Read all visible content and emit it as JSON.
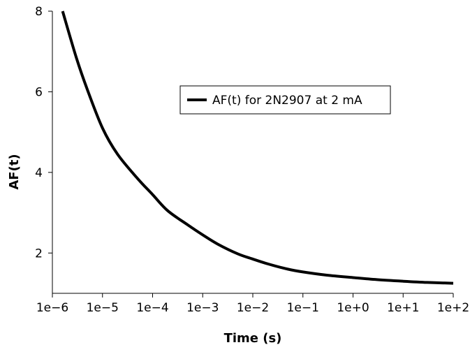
{
  "chart_data": {
    "type": "line",
    "xlabel": "Time (s)",
    "ylabel": "AF(t)",
    "x_scale": "log",
    "xlim": [
      1e-06,
      100
    ],
    "ylim": [
      1,
      8
    ],
    "x_ticks": [
      1e-06,
      1e-05,
      0.0001,
      0.001,
      0.01,
      0.1,
      1,
      10,
      100
    ],
    "x_tick_labels": [
      "1e−6",
      "1e−5",
      "1e−4",
      "1e−3",
      "1e−2",
      "1e−1",
      "1e+0",
      "1e+1",
      "1e+2"
    ],
    "y_ticks": [
      2,
      4,
      6,
      8
    ],
    "y_tick_labels": [
      "2",
      "4",
      "6",
      "8"
    ],
    "grid": false,
    "legend_position": "top-right",
    "line_color": "#000000",
    "series": [
      {
        "name": "AF(t) for 2N2907 at 2 mA",
        "x": [
          1.6e-06,
          3e-06,
          5e-06,
          1e-05,
          2e-05,
          5e-05,
          0.0001,
          0.0002,
          0.0005,
          0.001,
          0.002,
          0.005,
          0.01,
          0.02,
          0.05,
          0.1,
          0.3,
          1,
          3,
          10,
          30,
          100
        ],
        "y": [
          8.0,
          6.85,
          6.05,
          5.1,
          4.45,
          3.85,
          3.45,
          3.05,
          2.7,
          2.45,
          2.22,
          1.98,
          1.85,
          1.73,
          1.6,
          1.53,
          1.45,
          1.39,
          1.34,
          1.3,
          1.27,
          1.25
        ]
      }
    ]
  }
}
